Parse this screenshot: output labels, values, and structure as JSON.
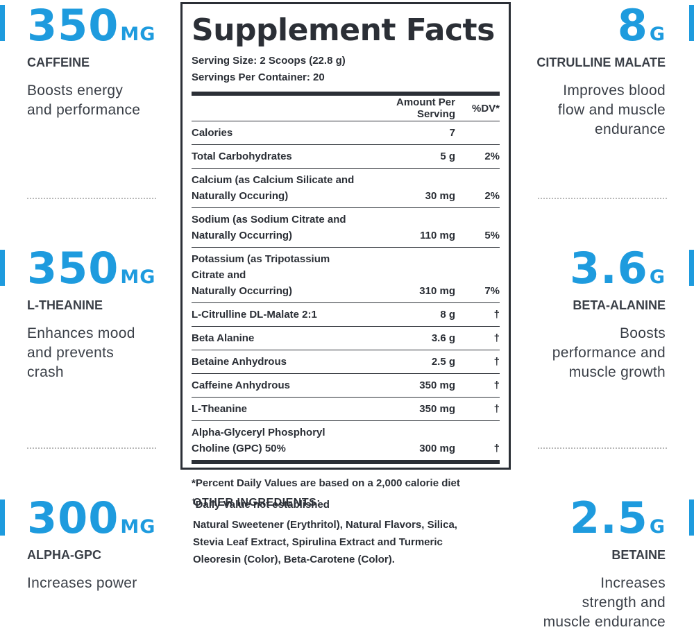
{
  "colors": {
    "accent": "#1e9bde",
    "text": "#2b2f36"
  },
  "stats": [
    {
      "value": "350",
      "unit": "MG",
      "name": "CAFFEINE",
      "desc": [
        "Boosts energy",
        "and performance"
      ]
    },
    {
      "value": "350",
      "unit": "MG",
      "name": "L-THEANINE",
      "desc": [
        "Enhances mood",
        "and prevents",
        "crash"
      ]
    },
    {
      "value": "300",
      "unit": "MG",
      "name": "ALPHA-GPC",
      "desc": [
        "Increases power"
      ]
    },
    {
      "value": "8",
      "unit": "G",
      "name": "CITRULLINE MALATE",
      "desc": [
        "Improves blood",
        "flow and muscle",
        "endurance"
      ]
    },
    {
      "value": "3.6",
      "unit": "G",
      "name": "BETA-ALANINE",
      "desc": [
        "Boosts",
        "performance and",
        "muscle growth"
      ]
    },
    {
      "value": "2.5",
      "unit": "G",
      "name": "BETAINE",
      "desc": [
        "Increases",
        "strength and",
        "muscle endurance"
      ]
    }
  ],
  "facts": {
    "title": "Supplement Facts",
    "serving_size": "Serving Size: 2 Scoops (22.8 g)",
    "servings_per_container": "Servings Per Container: 20",
    "header_amount": "Amount Per Serving",
    "header_dv": "%DV*",
    "rows": [
      {
        "name": [
          "Calories"
        ],
        "amount": "7",
        "dv": ""
      },
      {
        "name": [
          "Total Carbohydrates"
        ],
        "amount": "5 g",
        "dv": "2%"
      },
      {
        "name": [
          "Calcium (as Calcium Silicate and",
          "Naturally Occuring)"
        ],
        "amount": "30 mg",
        "dv": "2%"
      },
      {
        "name": [
          "Sodium (as Sodium Citrate and",
          "Naturally Occurring)"
        ],
        "amount": "110 mg",
        "dv": "5%"
      },
      {
        "name": [
          "Potassium (as Tripotassium Citrate and",
          "Naturally Occurring)"
        ],
        "amount": "310 mg",
        "dv": "7%"
      },
      {
        "name": [
          "L-Citrulline DL-Malate 2:1"
        ],
        "amount": "8 g",
        "dv": "†"
      },
      {
        "name": [
          "Beta Alanine"
        ],
        "amount": "3.6 g",
        "dv": "†"
      },
      {
        "name": [
          "Betaine Anhydrous"
        ],
        "amount": "2.5 g",
        "dv": "†"
      },
      {
        "name": [
          "Caffeine Anhydrous"
        ],
        "amount": "350 mg",
        "dv": "†"
      },
      {
        "name": [
          "L-Theanine"
        ],
        "amount": "350 mg",
        "dv": "†"
      },
      {
        "name": [
          "Alpha-Glyceryl Phosphoryl",
          "Choline (GPC) 50%"
        ],
        "amount": "300 mg",
        "dv": "†"
      }
    ],
    "note_dv": "*Percent Daily Values are based on a 2,000 calorie diet",
    "note_dagger_mark": "†",
    "note_dagger": "Daily Value not established"
  },
  "other_ingredients": {
    "title": "OTHER INGREDIENTS:",
    "lines": [
      "Natural Sweetener (Erythritol), Natural Flavors, Silica,",
      "Stevia Leaf Extract, Spirulina Extract and Turmeric",
      "Oleoresin (Color), Beta-Carotene (Color)."
    ]
  }
}
